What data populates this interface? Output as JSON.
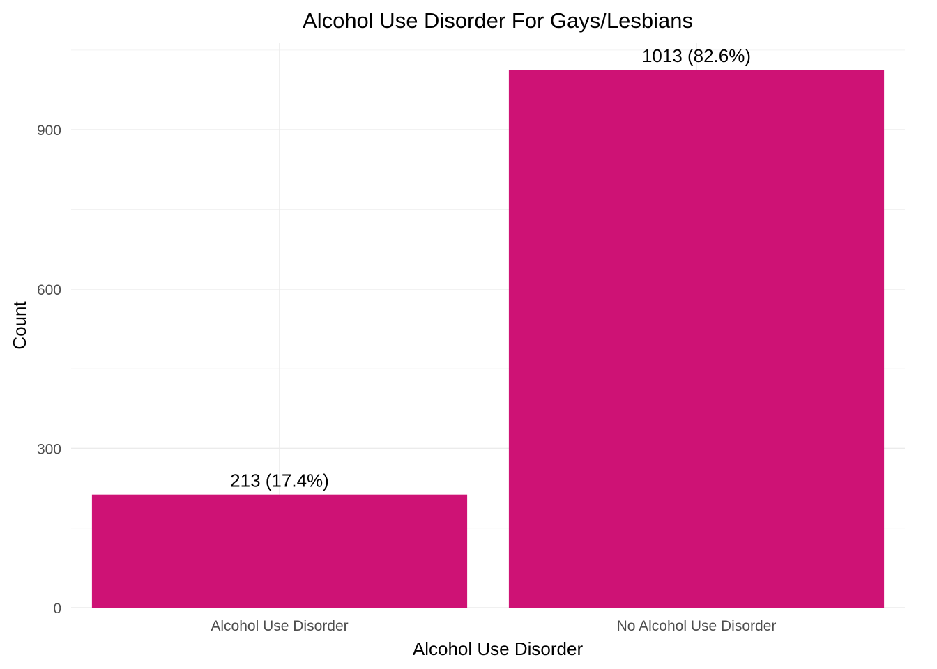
{
  "chart_data": {
    "type": "bar",
    "title": "Alcohol Use Disorder For Gays/Lesbians",
    "xlabel": "Alcohol Use Disorder",
    "ylabel": "Count",
    "categories": [
      "Alcohol Use Disorder",
      "No Alcohol Use Disorder"
    ],
    "values": [
      213,
      1013
    ],
    "data_labels": [
      "213 (17.4%)",
      "1013 (82.6%)"
    ],
    "yticks": [
      0,
      300,
      600,
      900
    ],
    "ylim": [
      0,
      1063
    ],
    "grid": true,
    "bar_color": "#CE1275"
  }
}
